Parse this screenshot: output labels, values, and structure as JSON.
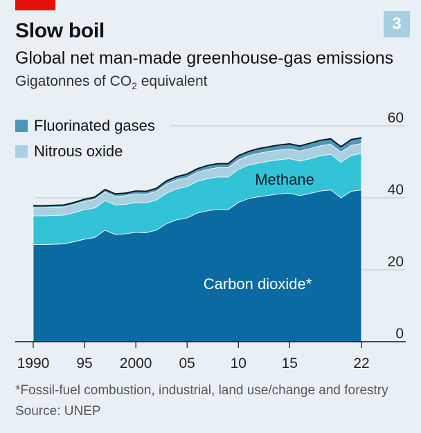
{
  "header": {
    "title": "Slow boil",
    "badge": "3",
    "subtitle": "Global net man-made greenhouse-gas emissions",
    "units_prefix": "Gigatonnes of CO",
    "units_sub": "2",
    "units_suffix": " equivalent"
  },
  "colors": {
    "background": "#e9f0f5",
    "co2": "#0b6aa1",
    "methane": "#33c3d6",
    "nitrous": "#a9cfe0",
    "fluorinated": "#4e96b7",
    "top_line": "#0f1a24",
    "accent_red": "#e3120b"
  },
  "footer": {
    "footnote": "*Fossil-fuel combustion, industrial, land use/change and forestry",
    "source": "Source: UNEP"
  },
  "chart_data": {
    "type": "area",
    "stacked": true,
    "xlim": [
      1990,
      2022
    ],
    "ylim": [
      0,
      60
    ],
    "y_ticks": [
      0,
      20,
      40,
      60
    ],
    "x_ticks": [
      1990,
      1995,
      2000,
      2005,
      2010,
      2015,
      2022
    ],
    "x_tick_labels": [
      "1990",
      "95",
      "2000",
      "05",
      "10",
      "15",
      "22"
    ],
    "grid": "horizontal",
    "legend_position": "top-left",
    "x": [
      1990,
      1991,
      1992,
      1993,
      1994,
      1995,
      1996,
      1997,
      1998,
      1999,
      2000,
      2001,
      2002,
      2003,
      2004,
      2005,
      2006,
      2007,
      2008,
      2009,
      2010,
      2011,
      2012,
      2013,
      2014,
      2015,
      2016,
      2017,
      2018,
      2019,
      2020,
      2021,
      2022
    ],
    "series": [
      {
        "name": "Carbon dioxide*",
        "label_position": "inside",
        "values": [
          27.0,
          27.0,
          27.1,
          27.2,
          27.8,
          28.5,
          29.0,
          31.0,
          29.8,
          30.0,
          30.4,
          30.3,
          31.0,
          32.8,
          33.9,
          34.4,
          35.8,
          36.4,
          36.8,
          36.7,
          38.7,
          39.8,
          40.3,
          40.7,
          41.1,
          41.3,
          40.6,
          41.2,
          41.9,
          42.2,
          40.0,
          41.8,
          42.2
        ]
      },
      {
        "name": "Methane",
        "label_position": "inside",
        "values": [
          8.0,
          8.0,
          8.0,
          8.0,
          8.1,
          8.2,
          8.2,
          8.2,
          8.2,
          8.2,
          8.3,
          8.3,
          8.4,
          8.5,
          8.6,
          8.7,
          8.8,
          8.9,
          9.0,
          9.1,
          9.2,
          9.3,
          9.4,
          9.5,
          9.5,
          9.6,
          9.6,
          9.7,
          9.8,
          9.9,
          9.9,
          10.0,
          10.1
        ]
      },
      {
        "name": "Nitrous oxide",
        "label_position": "legend",
        "values": [
          2.3,
          2.3,
          2.3,
          2.3,
          2.3,
          2.3,
          2.4,
          2.4,
          2.4,
          2.4,
          2.4,
          2.4,
          2.4,
          2.5,
          2.5,
          2.5,
          2.5,
          2.6,
          2.6,
          2.6,
          2.6,
          2.6,
          2.7,
          2.7,
          2.7,
          2.7,
          2.8,
          2.8,
          2.8,
          2.8,
          2.8,
          2.8,
          2.8
        ]
      },
      {
        "name": "Fluorinated gases",
        "label_position": "legend",
        "values": [
          0.5,
          0.5,
          0.5,
          0.5,
          0.5,
          0.6,
          0.6,
          0.7,
          0.7,
          0.7,
          0.8,
          0.8,
          0.8,
          0.9,
          0.9,
          1.0,
          1.0,
          1.1,
          1.1,
          1.1,
          1.2,
          1.2,
          1.3,
          1.3,
          1.4,
          1.4,
          1.4,
          1.5,
          1.5,
          1.5,
          1.5,
          1.6,
          1.6
        ]
      }
    ]
  }
}
